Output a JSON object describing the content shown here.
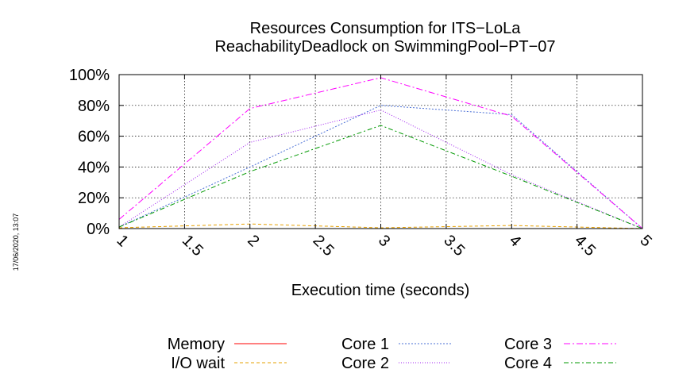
{
  "chart_data": {
    "type": "line",
    "title": [
      "Resources Consumption for ITS−LoLa",
      "ReachabilityDeadlock on SwimmingPool−PT−07"
    ],
    "xlabel": "Execution time (seconds)",
    "ylabel": "",
    "xlim": [
      1,
      5
    ],
    "ylim": [
      0,
      100
    ],
    "x_ticks": [
      "1",
      "1.5",
      "2",
      "2.5",
      "3",
      "3.5",
      "4",
      "4.5",
      "5"
    ],
    "y_ticks": [
      "0%",
      "20%",
      "40%",
      "60%",
      "80%",
      "100%"
    ],
    "grid": true,
    "legend_position": "bottom",
    "x": [
      1,
      2,
      3,
      4,
      5
    ],
    "series": [
      {
        "name": "Memory",
        "color": "#ff0000",
        "dash": "none",
        "values": [
          0,
          0,
          0,
          0,
          0
        ]
      },
      {
        "name": "I/O wait",
        "color": "#e6a000",
        "dash": "4 3",
        "values": [
          0.5,
          3,
          0.5,
          2,
          0
        ]
      },
      {
        "name": "Core 1",
        "color": "#4a6fd6",
        "dash": "2 2",
        "values": [
          1,
          40,
          80,
          74,
          0
        ]
      },
      {
        "name": "Core 2",
        "color": "#a020f0",
        "dash": "1 2",
        "values": [
          1,
          56,
          77,
          35,
          0
        ]
      },
      {
        "name": "Core 3",
        "color": "#ff00ff",
        "dash": "8 3 2 3",
        "values": [
          6,
          78,
          98,
          73,
          0
        ]
      },
      {
        "name": "Core 4",
        "color": "#009900",
        "dash": "6 3 2 3",
        "values": [
          1,
          37,
          67,
          34,
          0
        ]
      }
    ]
  },
  "timestamp": "17/06/2020, 13:07"
}
